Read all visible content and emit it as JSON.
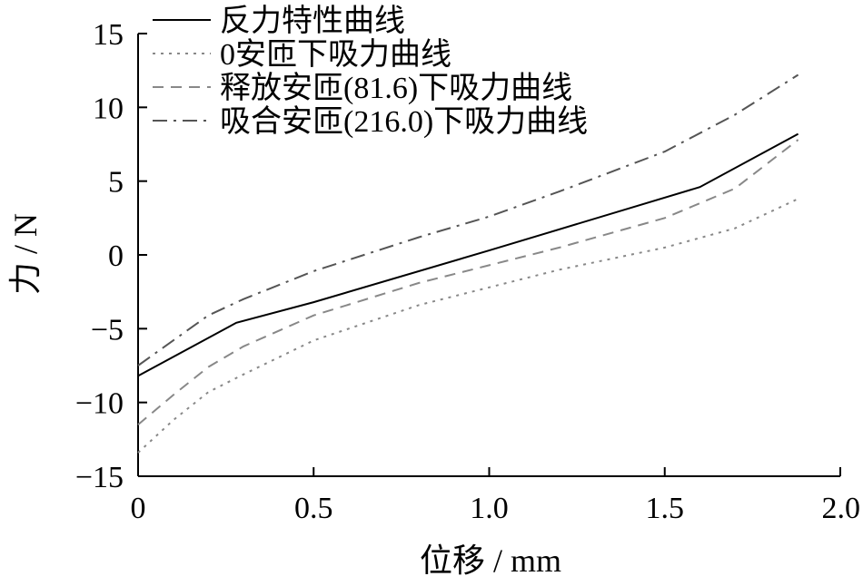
{
  "chart_data": {
    "type": "line",
    "xlabel": "位移 / mm",
    "ylabel": "力 / N",
    "xlim": [
      0,
      2.0
    ],
    "ylim": [
      -15,
      15
    ],
    "x_ticks": [
      0,
      0.5,
      1.0,
      1.5,
      2.0
    ],
    "x_tick_labels": [
      "0",
      "0.5",
      "1.0",
      "1.5",
      "2.0"
    ],
    "y_ticks": [
      -15,
      -10,
      -5,
      0,
      5,
      10,
      15
    ],
    "y_tick_labels": [
      "−15",
      "−10",
      "−5",
      "0",
      "5",
      "10",
      "15"
    ],
    "grid": false,
    "legend_position": "top-left",
    "series": [
      {
        "name": "反力特性曲线",
        "style": "solid",
        "color": "#000000",
        "x": [
          0,
          0.28,
          0.5,
          1.0,
          1.6,
          1.88
        ],
        "y": [
          -8.2,
          -4.6,
          -3.2,
          0.3,
          4.6,
          8.2
        ]
      },
      {
        "name": "0安匝下吸力曲线",
        "style": "dotted",
        "color": "#888888",
        "x": [
          0,
          0.1,
          0.2,
          0.3,
          0.5,
          0.8,
          1.0,
          1.2,
          1.5,
          1.7,
          1.88
        ],
        "y": [
          -13.4,
          -11.2,
          -9.3,
          -8.1,
          -5.8,
          -3.4,
          -2.2,
          -1.0,
          0.5,
          1.8,
          3.8
        ]
      },
      {
        "name": "释放安匝(81.6)下吸力曲线",
        "style": "dashed",
        "color": "#888888",
        "x": [
          0,
          0.1,
          0.2,
          0.3,
          0.5,
          0.8,
          1.0,
          1.2,
          1.5,
          1.7,
          1.88
        ],
        "y": [
          -11.5,
          -9.5,
          -7.6,
          -6.2,
          -4.1,
          -1.9,
          -0.7,
          0.5,
          2.5,
          4.5,
          7.8
        ]
      },
      {
        "name": "吸合安匝(216.0)下吸力曲线",
        "style": "dashdot",
        "color": "#555555",
        "x": [
          0,
          0.1,
          0.2,
          0.3,
          0.5,
          0.8,
          1.0,
          1.2,
          1.5,
          1.7,
          1.88
        ],
        "y": [
          -7.5,
          -5.8,
          -4.1,
          -3.0,
          -1.1,
          1.2,
          2.6,
          4.3,
          7.0,
          9.5,
          12.2
        ]
      }
    ]
  }
}
